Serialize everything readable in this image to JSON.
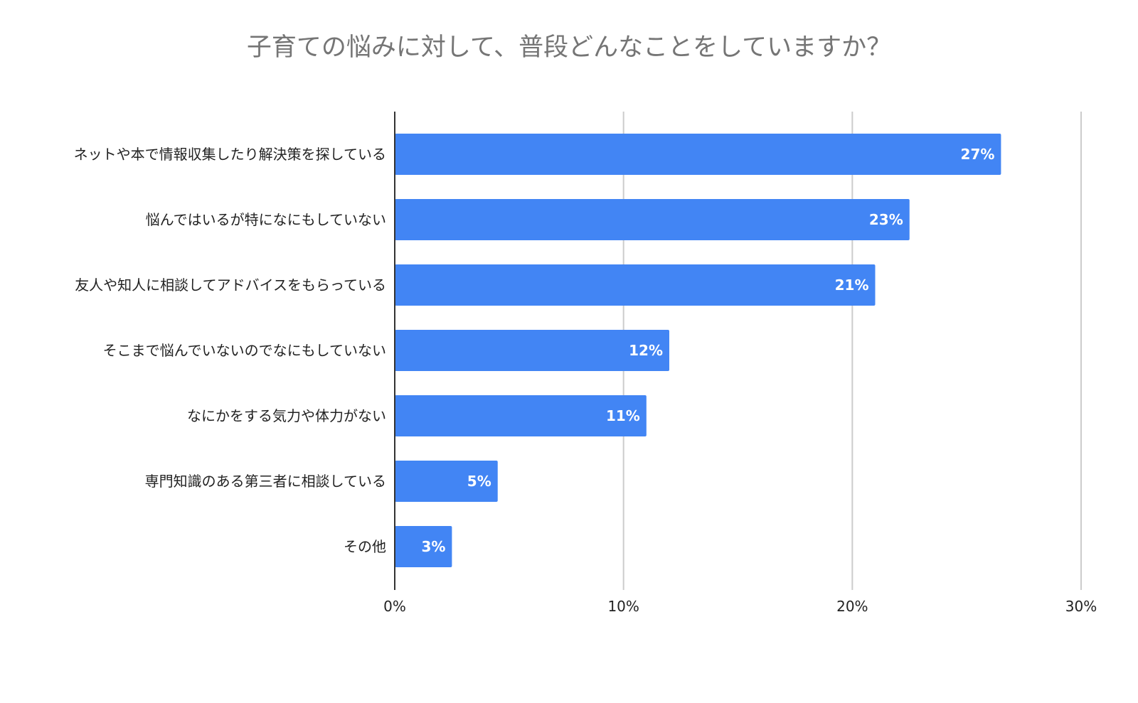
{
  "chart_data": {
    "type": "bar",
    "orientation": "horizontal",
    "title": "子育ての悩みに対して、普段どんなことをしていますか？",
    "categories": [
      "ネットや本で情報収集したり解決策を探している",
      "悩んではいるが特になにもしていない",
      "友人や知人に相談してアドバイスをもらっている",
      "そこまで悩んでいないのでなにもしていない",
      "なにかをする気力や体力がない",
      "専門知識のある第三者に相談している",
      "その他"
    ],
    "values": [
      26.5,
      22.5,
      21.0,
      12.0,
      11.0,
      4.5,
      2.5
    ],
    "data_labels": [
      "27%",
      "23%",
      "21%",
      "12%",
      "11%",
      "5%",
      "3%"
    ],
    "xlim": [
      0,
      30
    ],
    "x_ticks": [
      0,
      10,
      20,
      30
    ],
    "x_tick_labels": [
      "0%",
      "10%",
      "20%",
      "30%"
    ],
    "grid": true,
    "legend": "none",
    "colors": {
      "bar": "#4285f4",
      "grid": "#cccccc",
      "axis": "#333333",
      "label": "#222222",
      "value_label": "#ffffff",
      "title": "#757575"
    }
  }
}
